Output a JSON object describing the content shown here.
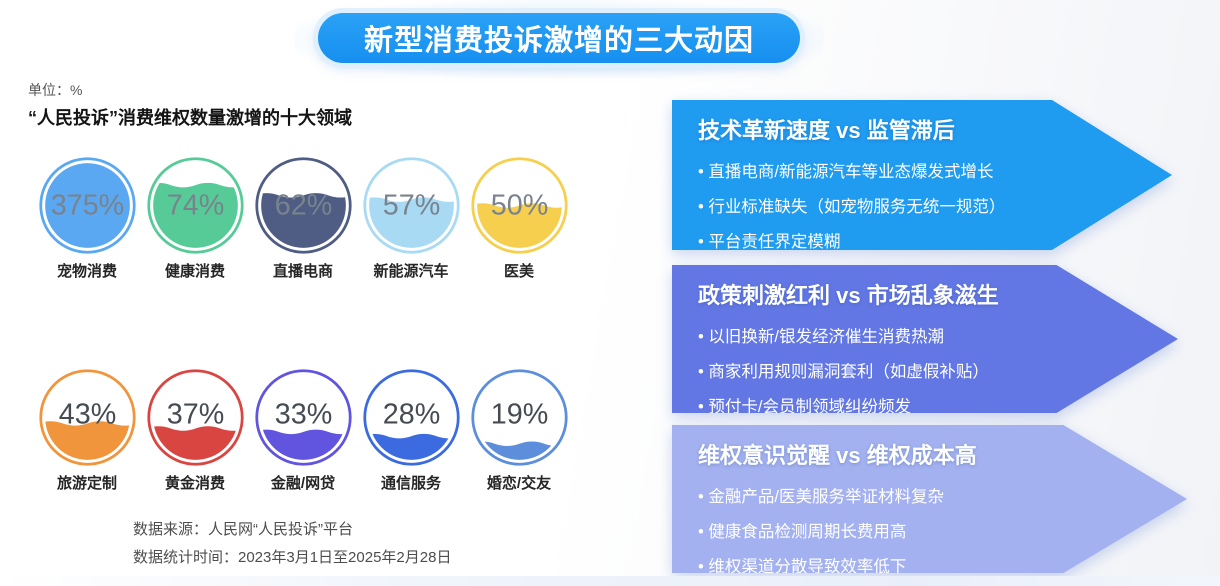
{
  "header": {
    "title": "新型消费投诉激增的三大动因"
  },
  "unit_label": "单位：%",
  "chart_data": {
    "type": "liquid_fill_gauge_grid",
    "title": "“人民投诉”消费维权数量激增的十大领域",
    "unit": "%",
    "categories": [
      "宠物消费",
      "健康消费",
      "直播电商",
      "新能源汽车",
      "医美",
      "旅游定制",
      "黄金消费",
      "金融/网贷",
      "通信服务",
      "婚恋/交友"
    ],
    "values": [
      375,
      74,
      62,
      57,
      50,
      43,
      37,
      33,
      28,
      19
    ],
    "items": [
      {
        "label": "宠物消费",
        "value": 375,
        "display": "375%",
        "color": "#5aa8f2",
        "row": 1
      },
      {
        "label": "健康消费",
        "value": 74,
        "display": "74%",
        "color": "#57cb97",
        "row": 1
      },
      {
        "label": "直播电商",
        "value": 62,
        "display": "62%",
        "color": "#4f5d85",
        "row": 1
      },
      {
        "label": "新能源汽车",
        "value": 57,
        "display": "57%",
        "color": "#a9daf4",
        "row": 1
      },
      {
        "label": "医美",
        "value": 50,
        "display": "50%",
        "color": "#f5cf4d",
        "row": 1
      },
      {
        "label": "旅游定制",
        "value": 43,
        "display": "43%",
        "color": "#f0953c",
        "row": 2
      },
      {
        "label": "黄金消费",
        "value": 37,
        "display": "37%",
        "color": "#d94541",
        "row": 2
      },
      {
        "label": "金融/网贷",
        "value": 33,
        "display": "33%",
        "color": "#6154df",
        "row": 2
      },
      {
        "label": "通信服务",
        "value": 28,
        "display": "28%",
        "color": "#3c6bdf",
        "row": 2
      },
      {
        "label": "婚恋/交友",
        "value": 19,
        "display": "19%",
        "color": "#5c8edb",
        "row": 2
      }
    ],
    "value_text_colors": {
      "row1": "#79838e",
      "row2": "#464b52"
    }
  },
  "source": {
    "line1": "数据来源：人民网“人民投诉”平台",
    "line2": "数据统计时间：2023年3月1日至2025年2月28日"
  },
  "reasons": [
    {
      "heading": "技术革新速度 vs 监管滞后",
      "color": "#1f9bf0",
      "bullets": [
        "直播电商/新能源汽车等业态爆发式增长",
        "行业标准缺失（如宠物服务无统一规范）",
        "平台责任界定模糊"
      ]
    },
    {
      "heading": "政策刺激红利 vs 市场乱象滋生",
      "color": "#6277e4",
      "bullets": [
        "以旧换新/银发经济催生消费热潮",
        "商家利用规则漏洞套利（如虚假补贴）",
        "预付卡/会员制领域纠纷频发"
      ]
    },
    {
      "heading": "维权意识觉醒 vs 维权成本高",
      "color": "#a3b1f0",
      "bullets": [
        "金融产品/医美服务举证材料复杂",
        "健康食品检测周期长费用高",
        "维权渠道分散导致效率低下"
      ]
    }
  ]
}
